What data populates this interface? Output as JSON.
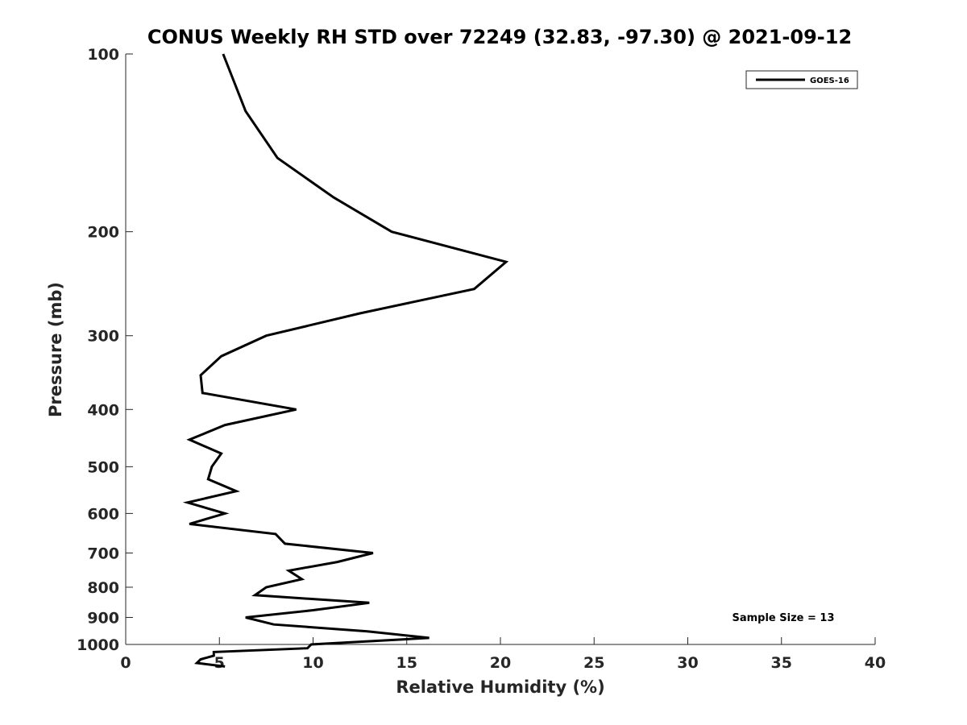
{
  "chart_data": {
    "type": "line",
    "title": "CONUS Weekly RH STD over 72249 (32.83, -97.30) @ 2021-09-12",
    "xlabel": "Relative Humidity (%)",
    "ylabel": "Pressure (mb)",
    "xlim": [
      0,
      40
    ],
    "ylim": [
      100,
      1000
    ],
    "y_scale": "log",
    "y_reversed": true,
    "xticks": [
      "0",
      "5",
      "10",
      "15",
      "20",
      "25",
      "30",
      "35",
      "40"
    ],
    "yticks": [
      "100",
      "200",
      "300",
      "400",
      "500",
      "600",
      "700",
      "800",
      "900",
      "1000"
    ],
    "grid": false,
    "legend_position": "top-right",
    "annotation": "Sample Size = 13",
    "series": [
      {
        "name": "GOES-16",
        "color": "#000000",
        "points": [
          [
            5.2,
            100
          ],
          [
            6.4,
            125
          ],
          [
            8.1,
            150
          ],
          [
            11.1,
            175
          ],
          [
            14.2,
            200
          ],
          [
            14.2,
            200
          ],
          [
            20.3,
            225
          ],
          [
            18.6,
            250
          ],
          [
            12.5,
            275
          ],
          [
            7.5,
            300
          ],
          [
            5.1,
            325
          ],
          [
            4.0,
            350
          ],
          [
            4.1,
            375
          ],
          [
            9.1,
            400
          ],
          [
            5.3,
            425
          ],
          [
            3.4,
            450
          ],
          [
            5.1,
            475
          ],
          [
            4.6,
            500
          ],
          [
            4.4,
            525
          ],
          [
            5.9,
            550
          ],
          [
            3.3,
            575
          ],
          [
            5.3,
            600
          ],
          [
            3.4,
            625
          ],
          [
            8.0,
            650
          ],
          [
            8.5,
            675
          ],
          [
            13.2,
            700
          ],
          [
            11.3,
            725
          ],
          [
            8.7,
            750
          ],
          [
            9.4,
            775
          ],
          [
            7.5,
            800
          ],
          [
            6.9,
            825
          ],
          [
            13.0,
            850
          ],
          [
            10.0,
            875
          ],
          [
            6.4,
            900
          ],
          [
            7.9,
            925
          ],
          [
            12.9,
            950
          ],
          [
            16.2,
            975
          ],
          [
            9.9,
            1000
          ],
          [
            9.7,
            1015
          ],
          [
            4.7,
            1030
          ],
          [
            4.7,
            1045
          ],
          [
            4.0,
            1060
          ],
          [
            3.8,
            1075
          ],
          [
            5.3,
            1090
          ]
        ]
      }
    ]
  }
}
